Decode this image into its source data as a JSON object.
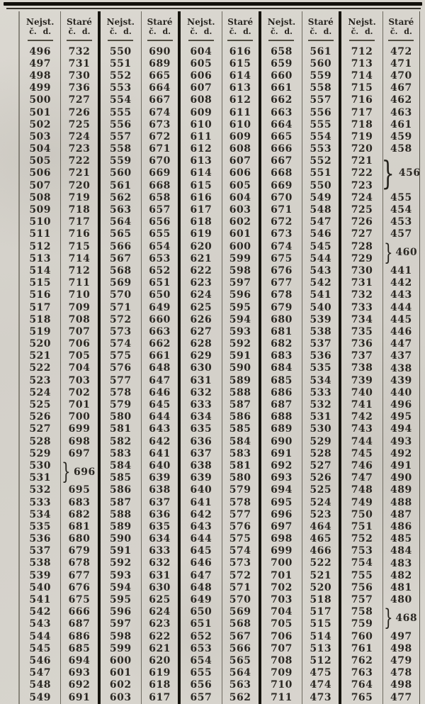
{
  "header": {
    "new_label": "Nejst.",
    "old_label": "Staré",
    "unit_label": "č. d."
  },
  "glyphs": {
    "brace": "}"
  },
  "colors": {
    "ink": "#2b2823",
    "paper": "#d6d3cc",
    "rule_dark": "#16140e",
    "rule_light": "#6e6a60"
  },
  "pairs": [
    {
      "rows": [
        [
          "496",
          "732"
        ],
        [
          "497",
          "731"
        ],
        [
          "498",
          "730"
        ],
        [
          "499",
          "736"
        ],
        [
          "500",
          "727"
        ],
        [
          "501",
          "726"
        ],
        [
          "502",
          "725"
        ],
        [
          "503",
          "724"
        ],
        [
          "504",
          "723"
        ],
        [
          "505",
          "722"
        ],
        [
          "506",
          "721"
        ],
        [
          "507",
          "720"
        ],
        [
          "508",
          "719"
        ],
        [
          "509",
          "718"
        ],
        [
          "510",
          "717"
        ],
        [
          "511",
          "716"
        ],
        [
          "512",
          "715"
        ],
        [
          "513",
          "714"
        ],
        [
          "514",
          "712"
        ],
        [
          "515",
          "711"
        ],
        [
          "516",
          "710"
        ],
        [
          "517",
          "709"
        ],
        [
          "518",
          "708"
        ],
        [
          "519",
          "707"
        ],
        [
          "520",
          "706"
        ],
        [
          "521",
          "705"
        ],
        [
          "522",
          "704"
        ],
        [
          "523",
          "703"
        ],
        [
          "524",
          "702"
        ],
        [
          "525",
          "701"
        ],
        [
          "526",
          "700"
        ],
        [
          "527",
          "699"
        ],
        [
          "528",
          "698"
        ],
        [
          "529",
          "697"
        ],
        [
          "530",
          "696",
          2
        ],
        [
          "531",
          null
        ],
        [
          "532",
          "695"
        ],
        [
          "533",
          "683"
        ],
        [
          "534",
          "682"
        ],
        [
          "535",
          "681"
        ],
        [
          "536",
          "680"
        ],
        [
          "537",
          "679"
        ],
        [
          "538",
          "678"
        ],
        [
          "539",
          "677"
        ],
        [
          "540",
          "676"
        ],
        [
          "541",
          "675"
        ],
        [
          "542",
          "666"
        ],
        [
          "543",
          "687"
        ],
        [
          "544",
          "686"
        ],
        [
          "545",
          "685"
        ],
        [
          "546",
          "694"
        ],
        [
          "547",
          "693"
        ],
        [
          "548",
          "692"
        ],
        [
          "549",
          "691"
        ]
      ]
    },
    {
      "rows": [
        [
          "550",
          "690"
        ],
        [
          "551",
          "689"
        ],
        [
          "552",
          "665"
        ],
        [
          "553",
          "664"
        ],
        [
          "554",
          "667"
        ],
        [
          "555",
          "674"
        ],
        [
          "556",
          "673"
        ],
        [
          "557",
          "672"
        ],
        [
          "558",
          "671"
        ],
        [
          "559",
          "670"
        ],
        [
          "560",
          "669"
        ],
        [
          "561",
          "668"
        ],
        [
          "562",
          "658"
        ],
        [
          "563",
          "657"
        ],
        [
          "564",
          "656"
        ],
        [
          "565",
          "655"
        ],
        [
          "566",
          "654"
        ],
        [
          "567",
          "653"
        ],
        [
          "568",
          "652"
        ],
        [
          "569",
          "651"
        ],
        [
          "570",
          "650"
        ],
        [
          "571",
          "649"
        ],
        [
          "572",
          "660"
        ],
        [
          "573",
          "663"
        ],
        [
          "574",
          "662"
        ],
        [
          "575",
          "661"
        ],
        [
          "576",
          "648"
        ],
        [
          "577",
          "647"
        ],
        [
          "578",
          "646"
        ],
        [
          "579",
          "645"
        ],
        [
          "580",
          "644"
        ],
        [
          "581",
          "643"
        ],
        [
          "582",
          "642"
        ],
        [
          "583",
          "641"
        ],
        [
          "584",
          "640"
        ],
        [
          "585",
          "639"
        ],
        [
          "586",
          "638"
        ],
        [
          "587",
          "637"
        ],
        [
          "588",
          "636"
        ],
        [
          "589",
          "635"
        ],
        [
          "590",
          "634"
        ],
        [
          "591",
          "633"
        ],
        [
          "592",
          "632"
        ],
        [
          "593",
          "631"
        ],
        [
          "594",
          "630"
        ],
        [
          "595",
          "625"
        ],
        [
          "596",
          "624"
        ],
        [
          "597",
          "623"
        ],
        [
          "598",
          "622"
        ],
        [
          "599",
          "621"
        ],
        [
          "600",
          "620"
        ],
        [
          "601",
          "619"
        ],
        [
          "602",
          "618"
        ],
        [
          "603",
          "617"
        ]
      ]
    },
    {
      "rows": [
        [
          "604",
          "616"
        ],
        [
          "605",
          "615"
        ],
        [
          "606",
          "614"
        ],
        [
          "607",
          "613"
        ],
        [
          "608",
          "612"
        ],
        [
          "609",
          "611"
        ],
        [
          "610",
          "610"
        ],
        [
          "611",
          "609"
        ],
        [
          "612",
          "608"
        ],
        [
          "613",
          "607"
        ],
        [
          "614",
          "606"
        ],
        [
          "615",
          "605"
        ],
        [
          "616",
          "604"
        ],
        [
          "617",
          "603"
        ],
        [
          "618",
          "602"
        ],
        [
          "619",
          "601"
        ],
        [
          "620",
          "600"
        ],
        [
          "621",
          "599"
        ],
        [
          "622",
          "598"
        ],
        [
          "623",
          "597"
        ],
        [
          "624",
          "596"
        ],
        [
          "625",
          "595"
        ],
        [
          "626",
          "594"
        ],
        [
          "627",
          "593"
        ],
        [
          "628",
          "592"
        ],
        [
          "629",
          "591"
        ],
        [
          "630",
          "590"
        ],
        [
          "631",
          "589"
        ],
        [
          "632",
          "588"
        ],
        [
          "633",
          "587"
        ],
        [
          "634",
          "586"
        ],
        [
          "635",
          "585"
        ],
        [
          "636",
          "584"
        ],
        [
          "637",
          "583"
        ],
        [
          "638",
          "581"
        ],
        [
          "639",
          "580"
        ],
        [
          "640",
          "579"
        ],
        [
          "641",
          "578"
        ],
        [
          "642",
          "577"
        ],
        [
          "643",
          "576"
        ],
        [
          "644",
          "575"
        ],
        [
          "645",
          "574"
        ],
        [
          "646",
          "573"
        ],
        [
          "647",
          "572"
        ],
        [
          "648",
          "571"
        ],
        [
          "649",
          "570"
        ],
        [
          "650",
          "569"
        ],
        [
          "651",
          "568"
        ],
        [
          "652",
          "567"
        ],
        [
          "653",
          "566"
        ],
        [
          "654",
          "565"
        ],
        [
          "655",
          "564"
        ],
        [
          "656",
          "563"
        ],
        [
          "657",
          "562"
        ]
      ]
    },
    {
      "rows": [
        [
          "658",
          "561"
        ],
        [
          "659",
          "560"
        ],
        [
          "660",
          "559"
        ],
        [
          "661",
          "558"
        ],
        [
          "662",
          "557"
        ],
        [
          "663",
          "556"
        ],
        [
          "664",
          "555"
        ],
        [
          "665",
          "554"
        ],
        [
          "666",
          "553"
        ],
        [
          "667",
          "552"
        ],
        [
          "668",
          "551"
        ],
        [
          "669",
          "550"
        ],
        [
          "670",
          "549"
        ],
        [
          "671",
          "548"
        ],
        [
          "672",
          "547"
        ],
        [
          "673",
          "546"
        ],
        [
          "674",
          "545"
        ],
        [
          "675",
          "544"
        ],
        [
          "676",
          "543"
        ],
        [
          "677",
          "542"
        ],
        [
          "678",
          "541"
        ],
        [
          "679",
          "540"
        ],
        [
          "680",
          "539"
        ],
        [
          "681",
          "538"
        ],
        [
          "682",
          "537"
        ],
        [
          "683",
          "536"
        ],
        [
          "684",
          "535"
        ],
        [
          "685",
          "534"
        ],
        [
          "686",
          "533"
        ],
        [
          "687",
          "532"
        ],
        [
          "688",
          "531"
        ],
        [
          "689",
          "530"
        ],
        [
          "690",
          "529"
        ],
        [
          "691",
          "528"
        ],
        [
          "692",
          "527"
        ],
        [
          "693",
          "526"
        ],
        [
          "694",
          "525"
        ],
        [
          "695",
          "524"
        ],
        [
          "696",
          "523"
        ],
        [
          "697",
          "464"
        ],
        [
          "698",
          "465"
        ],
        [
          "699",
          "466"
        ],
        [
          "700",
          "522"
        ],
        [
          "701",
          "521"
        ],
        [
          "702",
          "520"
        ],
        [
          "703",
          "518"
        ],
        [
          "704",
          "517"
        ],
        [
          "705",
          "515"
        ],
        [
          "706",
          "514"
        ],
        [
          "707",
          "513"
        ],
        [
          "708",
          "512"
        ],
        [
          "709",
          "475"
        ],
        [
          "710",
          "474"
        ],
        [
          "711",
          "473"
        ]
      ]
    },
    {
      "rows": [
        [
          "712",
          "472"
        ],
        [
          "713",
          "471"
        ],
        [
          "714",
          "470"
        ],
        [
          "715",
          "467"
        ],
        [
          "716",
          "462"
        ],
        [
          "717",
          "463"
        ],
        [
          "718",
          "461"
        ],
        [
          "719",
          "459"
        ],
        [
          "720",
          "458"
        ],
        [
          "721",
          "456",
          3
        ],
        [
          "722",
          null
        ],
        [
          "723",
          null
        ],
        [
          "724",
          "455"
        ],
        [
          "725",
          "454"
        ],
        [
          "726",
          "453"
        ],
        [
          "727",
          "457"
        ],
        [
          "728",
          "460",
          2
        ],
        [
          "729",
          null
        ],
        [
          "730",
          "441"
        ],
        [
          "731",
          "442"
        ],
        [
          "732",
          "443"
        ],
        [
          "733",
          "444"
        ],
        [
          "734",
          "445"
        ],
        [
          "735",
          "446"
        ],
        [
          "736",
          "447"
        ],
        [
          "737",
          "437"
        ],
        [
          "738",
          "438"
        ],
        [
          "739",
          "439"
        ],
        [
          "740",
          "440"
        ],
        [
          "741",
          "496"
        ],
        [
          "742",
          "495"
        ],
        [
          "743",
          "494"
        ],
        [
          "744",
          "493"
        ],
        [
          "745",
          "492"
        ],
        [
          "746",
          "491"
        ],
        [
          "747",
          "490"
        ],
        [
          "748",
          "489"
        ],
        [
          "749",
          "488"
        ],
        [
          "750",
          "487"
        ],
        [
          "751",
          "486"
        ],
        [
          "752",
          "485"
        ],
        [
          "753",
          "484"
        ],
        [
          "754",
          "483"
        ],
        [
          "755",
          "482"
        ],
        [
          "756",
          "481"
        ],
        [
          "757",
          "480"
        ],
        [
          "758",
          "468",
          2
        ],
        [
          "759",
          null
        ],
        [
          "760",
          "497"
        ],
        [
          "761",
          "498"
        ],
        [
          "762",
          "479"
        ],
        [
          "763",
          "478"
        ],
        [
          "764",
          "498"
        ],
        [
          "765",
          "477"
        ]
      ]
    }
  ]
}
